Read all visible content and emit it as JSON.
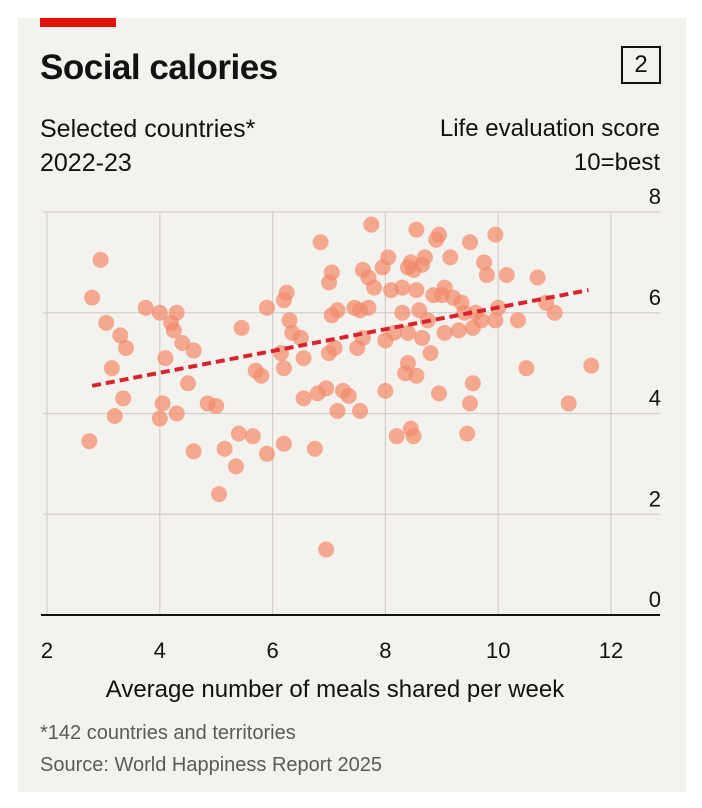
{
  "header": {
    "title": "Social calories",
    "badge": "2",
    "subtitle_line1": "Selected countries*",
    "subtitle_line2": "2022-23",
    "ylabel_line1": "Life evaluation score",
    "ylabel_line2": "10=best"
  },
  "footer": {
    "note": "*142 countries and territories",
    "source": "Source: World Happiness Report 2025"
  },
  "colors": {
    "accent_red": "#e3120b",
    "dot": "#f28b6b",
    "trend": "#d9232d",
    "grid": "#d3d0ca"
  },
  "chart_data": {
    "type": "scatter",
    "title": "Social calories",
    "subtitle": "Selected countries* 2022-23",
    "xlabel": "Average number of meals shared per week",
    "ylabel": "Life evaluation score 10=best",
    "xlim": [
      2,
      12
    ],
    "ylim": [
      0,
      8
    ],
    "xticks": [
      2,
      4,
      6,
      8,
      10,
      12
    ],
    "yticks": [
      0,
      2,
      4,
      6,
      8
    ],
    "grid": true,
    "trendline": {
      "x": [
        2.8,
        11.6
      ],
      "y": [
        4.55,
        6.45
      ],
      "style": "dashed"
    },
    "points": [
      [
        2.75,
        3.45
      ],
      [
        2.8,
        6.3
      ],
      [
        2.95,
        7.05
      ],
      [
        3.05,
        5.8
      ],
      [
        3.15,
        4.9
      ],
      [
        3.2,
        3.95
      ],
      [
        3.3,
        5.55
      ],
      [
        3.35,
        4.3
      ],
      [
        3.4,
        5.3
      ],
      [
        3.75,
        6.1
      ],
      [
        4.0,
        6.0
      ],
      [
        4.0,
        3.9
      ],
      [
        4.05,
        4.2
      ],
      [
        4.1,
        5.1
      ],
      [
        4.2,
        5.8
      ],
      [
        4.25,
        5.65
      ],
      [
        4.3,
        4.0
      ],
      [
        4.3,
        6.0
      ],
      [
        4.4,
        5.4
      ],
      [
        4.5,
        4.6
      ],
      [
        4.6,
        3.25
      ],
      [
        4.6,
        5.25
      ],
      [
        4.85,
        4.2
      ],
      [
        5.0,
        4.15
      ],
      [
        5.05,
        2.4
      ],
      [
        5.15,
        3.3
      ],
      [
        5.35,
        2.95
      ],
      [
        5.4,
        3.6
      ],
      [
        5.45,
        5.7
      ],
      [
        5.65,
        3.55
      ],
      [
        5.7,
        4.85
      ],
      [
        5.8,
        4.75
      ],
      [
        5.9,
        6.1
      ],
      [
        5.9,
        3.2
      ],
      [
        6.15,
        5.2
      ],
      [
        6.2,
        3.4
      ],
      [
        6.2,
        4.9
      ],
      [
        6.2,
        6.25
      ],
      [
        6.25,
        6.4
      ],
      [
        6.3,
        5.85
      ],
      [
        6.35,
        5.6
      ],
      [
        6.5,
        5.5
      ],
      [
        6.55,
        5.1
      ],
      [
        6.55,
        4.3
      ],
      [
        6.75,
        3.3
      ],
      [
        6.8,
        4.4
      ],
      [
        6.85,
        7.4
      ],
      [
        6.95,
        1.3
      ],
      [
        6.95,
        4.5
      ],
      [
        7.0,
        5.2
      ],
      [
        7.0,
        6.6
      ],
      [
        7.05,
        6.8
      ],
      [
        7.05,
        5.95
      ],
      [
        7.1,
        5.3
      ],
      [
        7.15,
        4.05
      ],
      [
        7.15,
        6.05
      ],
      [
        7.25,
        4.45
      ],
      [
        7.35,
        4.35
      ],
      [
        7.45,
        6.1
      ],
      [
        7.5,
        5.3
      ],
      [
        7.55,
        6.05
      ],
      [
        7.55,
        4.05
      ],
      [
        7.6,
        5.5
      ],
      [
        7.6,
        6.85
      ],
      [
        7.7,
        6.1
      ],
      [
        7.7,
        6.7
      ],
      [
        7.75,
        7.75
      ],
      [
        7.8,
        6.5
      ],
      [
        7.95,
        6.9
      ],
      [
        8.0,
        5.45
      ],
      [
        8.0,
        4.45
      ],
      [
        8.05,
        7.1
      ],
      [
        8.1,
        6.45
      ],
      [
        8.15,
        5.6
      ],
      [
        8.2,
        3.55
      ],
      [
        8.3,
        6.0
      ],
      [
        8.3,
        6.5
      ],
      [
        8.35,
        4.8
      ],
      [
        8.4,
        5.6
      ],
      [
        8.4,
        6.9
      ],
      [
        8.4,
        5.0
      ],
      [
        8.45,
        3.7
      ],
      [
        8.45,
        7.0
      ],
      [
        8.5,
        6.85
      ],
      [
        8.5,
        3.55
      ],
      [
        8.55,
        4.75
      ],
      [
        8.55,
        6.45
      ],
      [
        8.55,
        7.65
      ],
      [
        8.6,
        6.05
      ],
      [
        8.65,
        5.5
      ],
      [
        8.65,
        6.95
      ],
      [
        8.7,
        7.1
      ],
      [
        8.75,
        5.85
      ],
      [
        8.8,
        5.2
      ],
      [
        8.85,
        6.35
      ],
      [
        8.9,
        7.45
      ],
      [
        8.95,
        7.55
      ],
      [
        8.95,
        4.4
      ],
      [
        9.0,
        6.35
      ],
      [
        9.05,
        5.6
      ],
      [
        9.05,
        6.5
      ],
      [
        9.15,
        7.1
      ],
      [
        9.2,
        6.3
      ],
      [
        9.3,
        5.65
      ],
      [
        9.35,
        6.2
      ],
      [
        9.4,
        6.0
      ],
      [
        9.45,
        3.6
      ],
      [
        9.5,
        4.2
      ],
      [
        9.5,
        7.4
      ],
      [
        9.55,
        5.7
      ],
      [
        9.55,
        4.6
      ],
      [
        9.6,
        6.0
      ],
      [
        9.7,
        5.85
      ],
      [
        9.75,
        7.0
      ],
      [
        9.8,
        6.75
      ],
      [
        9.95,
        7.55
      ],
      [
        9.95,
        5.85
      ],
      [
        10.0,
        6.1
      ],
      [
        10.15,
        6.75
      ],
      [
        10.35,
        5.85
      ],
      [
        10.5,
        4.9
      ],
      [
        10.7,
        6.7
      ],
      [
        10.85,
        6.2
      ],
      [
        11.0,
        6.0
      ],
      [
        11.25,
        4.2
      ],
      [
        11.65,
        4.95
      ]
    ]
  }
}
